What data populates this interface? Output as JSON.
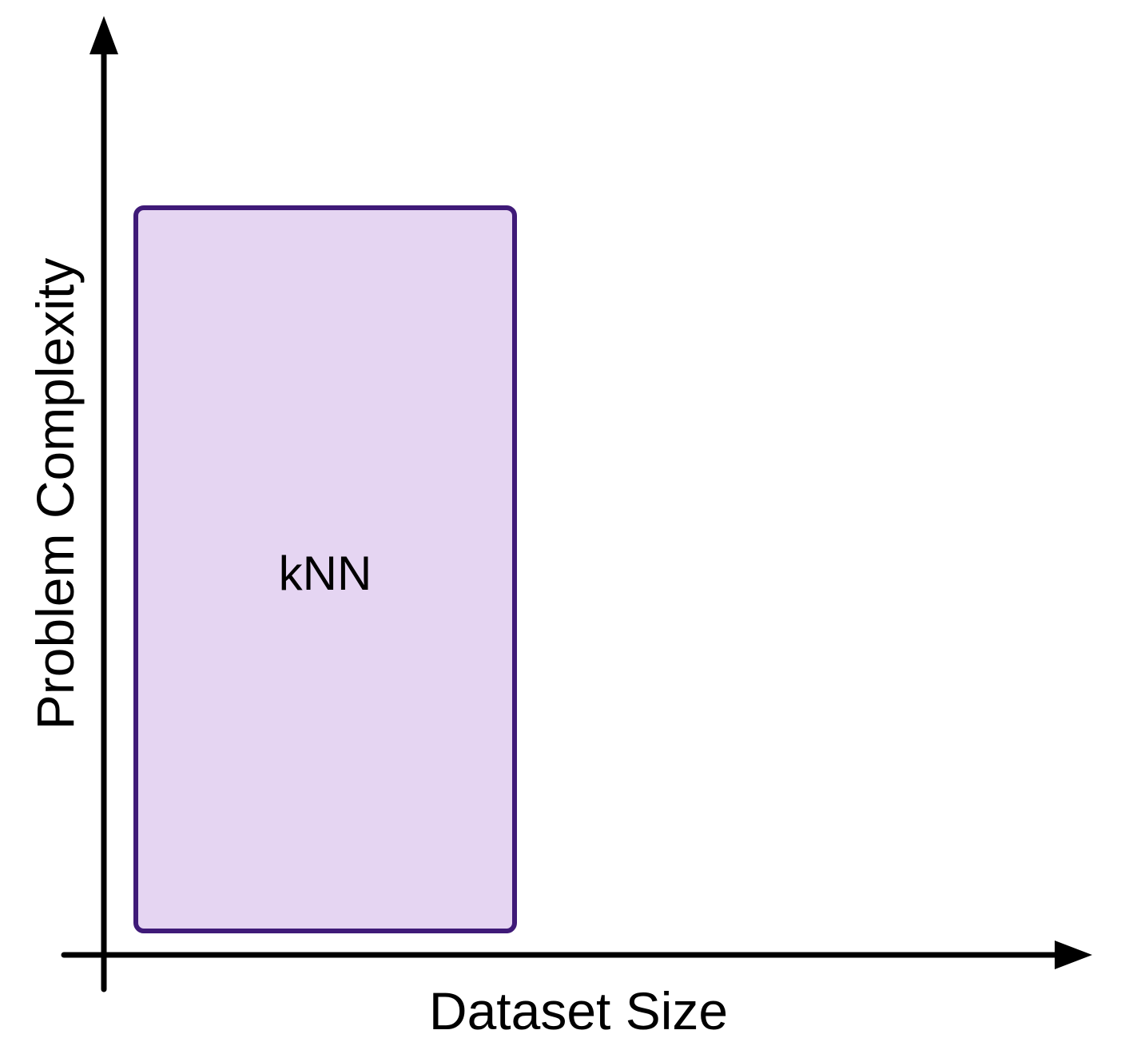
{
  "axes": {
    "x_label": "Dataset Size",
    "y_label": "Problem Complexity",
    "axis_color": "#000000"
  },
  "regions": [
    {
      "label": "kNN",
      "fill": "#E5D5F2",
      "stroke": "#3F1A78"
    }
  ]
}
